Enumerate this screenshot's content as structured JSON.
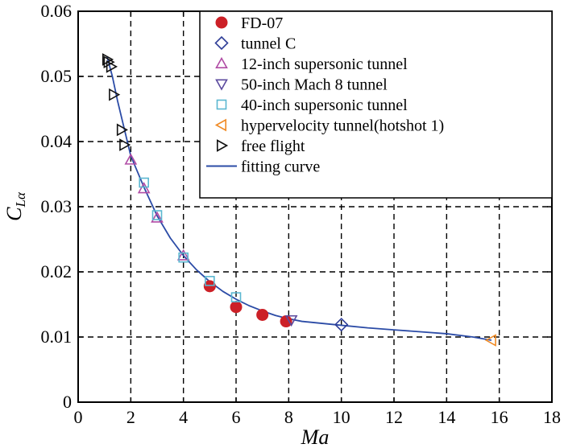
{
  "chart_data": {
    "type": "scatter",
    "title": "",
    "xlabel": "Ma",
    "ylabel_main": "C",
    "ylabel_sub": "Lα",
    "xlim": [
      0,
      18
    ],
    "ylim": [
      0,
      0.06
    ],
    "xticks": [
      0,
      2,
      4,
      6,
      8,
      10,
      12,
      14,
      16,
      18
    ],
    "yticks": [
      0,
      0.01,
      0.02,
      0.03,
      0.04,
      0.05,
      0.06
    ],
    "xtick_labels": [
      "0",
      "2",
      "4",
      "6",
      "8",
      "10",
      "12",
      "14",
      "16",
      "18"
    ],
    "ytick_labels": [
      "0",
      "0.01",
      "0.02",
      "0.03",
      "0.04",
      "0.05",
      "0.06"
    ],
    "grid": "dashed",
    "legend_position": "top-right",
    "series": [
      {
        "name": "FD-07",
        "marker": "filled-circle",
        "color": "#cc2027",
        "points": [
          [
            5.0,
            0.0178
          ],
          [
            6.0,
            0.0146
          ],
          [
            7.0,
            0.0134
          ],
          [
            7.9,
            0.0124
          ]
        ]
      },
      {
        "name": "tunnel C",
        "marker": "diamond",
        "color": "#2e3d97",
        "points": [
          [
            10.0,
            0.0119
          ]
        ]
      },
      {
        "name": "12-inch supersonic tunnel",
        "marker": "triangle-up",
        "color": "#b04ca5",
        "points": [
          [
            2.0,
            0.0372
          ],
          [
            2.5,
            0.0328
          ],
          [
            3.0,
            0.0283
          ],
          [
            4.0,
            0.0225
          ]
        ]
      },
      {
        "name": "50-inch Mach 8 tunnel",
        "marker": "triangle-down",
        "color": "#5b4a9e",
        "points": [
          [
            8.1,
            0.0126
          ]
        ]
      },
      {
        "name": "40-inch supersonic tunnel",
        "marker": "square",
        "color": "#5bb7d1",
        "points": [
          [
            2.5,
            0.0337
          ],
          [
            3.0,
            0.0287
          ],
          [
            4.0,
            0.0222
          ],
          [
            5.0,
            0.0186
          ],
          [
            6.0,
            0.0161
          ]
        ]
      },
      {
        "name": "hypervelocity tunnel(hotshot 1)",
        "marker": "triangle-left",
        "color": "#f08a24",
        "points": [
          [
            15.7,
            0.0095
          ]
        ]
      },
      {
        "name": "free flight",
        "marker": "triangle-right",
        "color": "#111111",
        "points": [
          [
            1.1,
            0.0526
          ],
          [
            1.15,
            0.0522
          ],
          [
            1.25,
            0.0515
          ],
          [
            1.35,
            0.0472
          ],
          [
            1.65,
            0.0418
          ],
          [
            1.75,
            0.0395
          ]
        ]
      },
      {
        "name": "fitting curve",
        "marker": "line",
        "color": "#2b4ba6",
        "points": [
          [
            1.1,
            0.053
          ],
          [
            1.3,
            0.05
          ],
          [
            1.5,
            0.0462
          ],
          [
            1.75,
            0.042
          ],
          [
            2.0,
            0.0378
          ],
          [
            2.5,
            0.033
          ],
          [
            3.0,
            0.0286
          ],
          [
            3.5,
            0.0252
          ],
          [
            4.0,
            0.0225
          ],
          [
            4.5,
            0.0203
          ],
          [
            5.0,
            0.0185
          ],
          [
            5.5,
            0.017
          ],
          [
            6.0,
            0.0158
          ],
          [
            6.5,
            0.0148
          ],
          [
            7.0,
            0.014
          ],
          [
            7.5,
            0.0133
          ],
          [
            8.0,
            0.0128
          ],
          [
            8.5,
            0.0124
          ],
          [
            9.0,
            0.0122
          ],
          [
            10.0,
            0.0118
          ],
          [
            11.0,
            0.0114
          ],
          [
            12.0,
            0.0111
          ],
          [
            13.0,
            0.0108
          ],
          [
            14.0,
            0.0105
          ],
          [
            15.0,
            0.01
          ],
          [
            15.7,
            0.0095
          ]
        ]
      }
    ]
  }
}
